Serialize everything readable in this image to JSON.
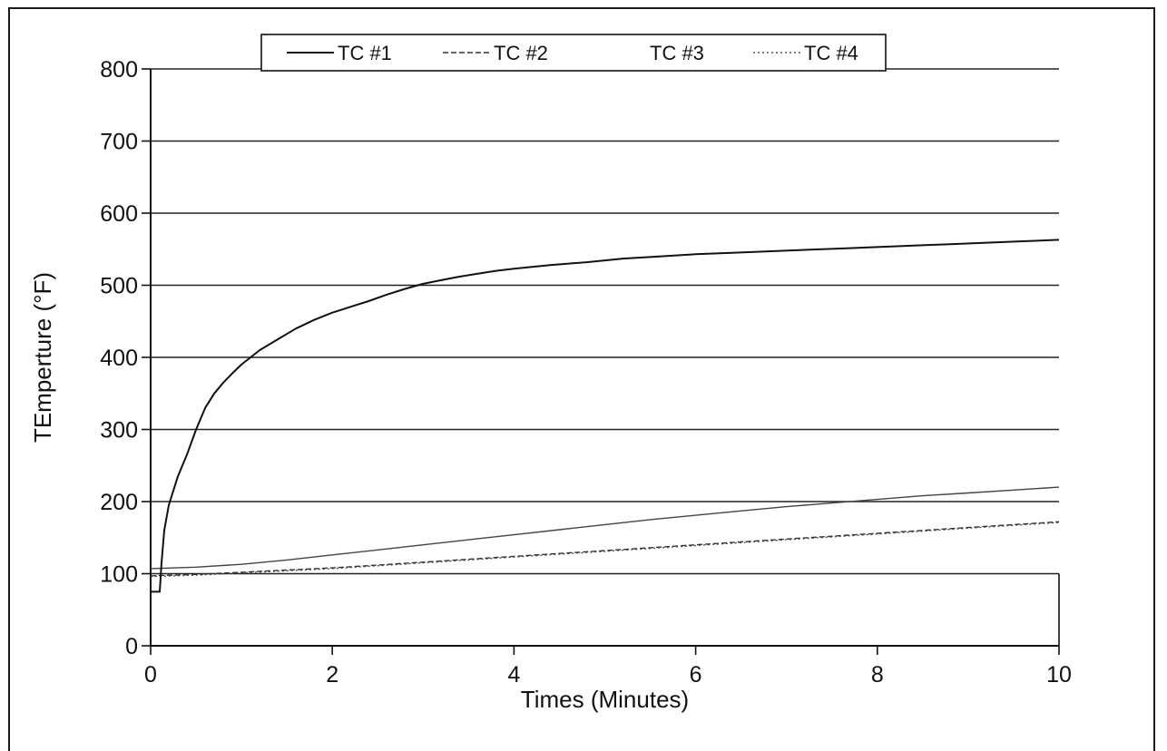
{
  "chart_data": {
    "type": "line",
    "title": "",
    "xlabel": "Times (Minutes)",
    "ylabel": "TEmperture (°F)",
    "xlim": [
      0,
      10
    ],
    "ylim": [
      0,
      800
    ],
    "x_ticks": [
      0,
      2,
      4,
      6,
      8,
      10
    ],
    "x_tick_labels": [
      "0",
      "2",
      "4",
      "6",
      "8",
      "10"
    ],
    "y_ticks": [
      0,
      100,
      200,
      300,
      400,
      500,
      600,
      700,
      800
    ],
    "y_tick_labels": [
      "0",
      "100",
      "200",
      "300",
      "400",
      "500",
      "600",
      "700",
      "800"
    ],
    "grid": "horizontal",
    "legend_position": "top",
    "series": [
      {
        "name": "TC #1",
        "style": "solid",
        "color": "#111111",
        "x": [
          0,
          0.1,
          0.12,
          0.15,
          0.2,
          0.25,
          0.3,
          0.4,
          0.5,
          0.6,
          0.7,
          0.8,
          0.9,
          1.0,
          1.2,
          1.4,
          1.6,
          1.8,
          2.0,
          2.2,
          2.4,
          2.6,
          2.8,
          3.0,
          3.2,
          3.4,
          3.6,
          3.8,
          4.0,
          4.4,
          4.8,
          5.2,
          5.6,
          6.0,
          6.4,
          6.8,
          7.2,
          7.6,
          8.0,
          8.4,
          8.8,
          9.2,
          9.6,
          10.0
        ],
        "y": [
          75,
          75,
          115,
          160,
          195,
          215,
          235,
          265,
          300,
          330,
          350,
          365,
          378,
          390,
          410,
          425,
          440,
          452,
          462,
          470,
          478,
          487,
          495,
          502,
          507,
          512,
          516,
          520,
          523,
          528,
          532,
          537,
          540,
          543,
          545,
          547,
          549,
          551,
          553,
          555,
          557,
          559,
          561,
          563
        ]
      },
      {
        "name": "TC #2",
        "style": "dashed",
        "color": "#333333",
        "x": [
          0,
          0.5,
          1,
          1.5,
          2,
          2.5,
          3,
          3.5,
          4,
          4.5,
          5,
          5.5,
          6,
          6.5,
          7,
          7.5,
          8,
          8.5,
          9,
          9.5,
          10
        ],
        "y": [
          97,
          99,
          102,
          105,
          108,
          112,
          116,
          120,
          124,
          128,
          132,
          136,
          140,
          144,
          148,
          152,
          156,
          160,
          164,
          168,
          172
        ]
      },
      {
        "name": "TC #3",
        "style": "solid-thin",
        "color": "#444444",
        "x": [
          0,
          0.5,
          1,
          1.5,
          2,
          2.5,
          3,
          3.5,
          4,
          4.5,
          5,
          5.5,
          6,
          6.5,
          7,
          7.5,
          8,
          8.5,
          9,
          9.5,
          10
        ],
        "y": [
          107,
          109,
          113,
          119,
          126,
          133,
          140,
          147,
          154,
          161,
          168,
          175,
          181,
          187,
          193,
          198,
          203,
          208,
          212,
          216,
          220
        ]
      },
      {
        "name": "TC #4",
        "style": "dotted",
        "color": "#555555",
        "x": [
          0,
          0.5,
          1,
          1.5,
          2,
          2.5,
          3,
          3.5,
          4,
          4.5,
          5,
          5.5,
          6,
          6.5,
          7,
          7.5,
          8,
          8.5,
          9,
          9.5,
          10
        ],
        "y": [
          96,
          98,
          101,
          104,
          107,
          111,
          115,
          119,
          123,
          127,
          131,
          135,
          139,
          143,
          147,
          151,
          155,
          159,
          163,
          167,
          171
        ]
      }
    ]
  }
}
